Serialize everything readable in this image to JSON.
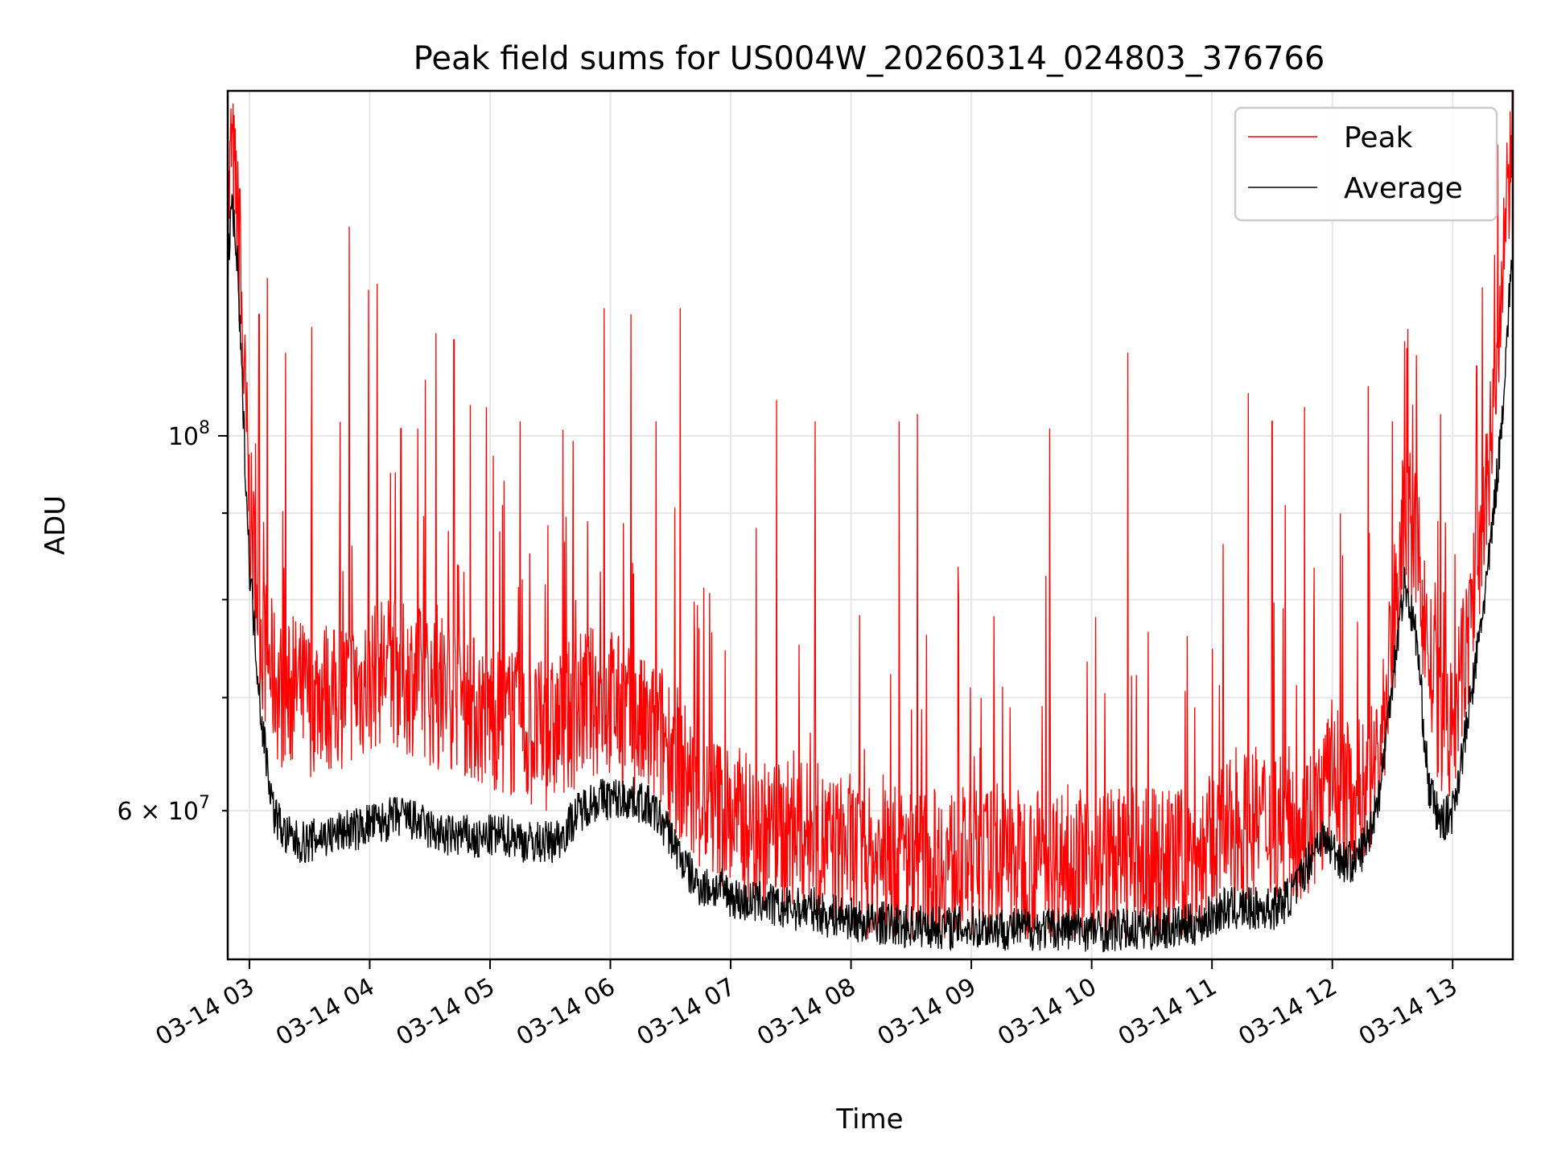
{
  "chart_data": {
    "type": "line",
    "title": "Peak field sums for US004W_20260314_024803_376766",
    "xlabel": "Time",
    "ylabel": "ADU",
    "yscale": "log",
    "ylim": [
      49000000,
      160000000
    ],
    "xlim": [
      2.82,
      13.5
    ],
    "grid": true,
    "legend_position": "top-right",
    "x_ticks": [
      {
        "value": 3,
        "label": "03-14 03"
      },
      {
        "value": 4,
        "label": "03-14 04"
      },
      {
        "value": 5,
        "label": "03-14 05"
      },
      {
        "value": 6,
        "label": "03-14 06"
      },
      {
        "value": 7,
        "label": "03-14 07"
      },
      {
        "value": 8,
        "label": "03-14 08"
      },
      {
        "value": 9,
        "label": "03-14 09"
      },
      {
        "value": 10,
        "label": "03-14 10"
      },
      {
        "value": 11,
        "label": "03-14 11"
      },
      {
        "value": 12,
        "label": "03-14 12"
      },
      {
        "value": 13,
        "label": "03-14 13"
      }
    ],
    "y_ticks_major": [
      {
        "value": 100000000,
        "label": "10",
        "exp": "8"
      }
    ],
    "y_ticks_minor": [
      {
        "value": 60000000,
        "label": "6 × 10",
        "exp": "7"
      },
      {
        "value": 70000000,
        "label": "",
        "exp": ""
      },
      {
        "value": 80000000,
        "label": "",
        "exp": ""
      },
      {
        "value": 90000000,
        "label": "",
        "exp": ""
      }
    ],
    "series": [
      {
        "name": "Peak",
        "color": "#ff0000",
        "x": [
          2.82,
          2.85,
          2.9,
          3.0,
          3.1,
          3.2,
          3.3,
          3.4,
          3.5,
          3.6,
          3.7,
          3.8,
          3.9,
          4.0,
          4.1,
          4.2,
          4.3,
          4.4,
          4.5,
          4.6,
          4.7,
          4.8,
          4.9,
          5.0,
          5.1,
          5.2,
          5.3,
          5.4,
          5.5,
          5.6,
          5.7,
          5.8,
          5.9,
          6.0,
          6.1,
          6.2,
          6.3,
          6.4,
          6.5,
          6.6,
          6.7,
          6.8,
          6.9,
          7.0,
          7.1,
          7.2,
          7.3,
          7.4,
          7.5,
          7.6,
          7.7,
          7.8,
          7.9,
          8.0,
          8.1,
          8.2,
          8.3,
          8.4,
          8.5,
          8.6,
          8.7,
          8.8,
          8.9,
          9.0,
          9.1,
          9.2,
          9.3,
          9.4,
          9.5,
          9.6,
          9.7,
          9.8,
          9.9,
          10.0,
          10.1,
          10.2,
          10.3,
          10.4,
          10.5,
          10.6,
          10.7,
          10.8,
          10.9,
          11.0,
          11.1,
          11.2,
          11.3,
          11.4,
          11.5,
          11.6,
          11.7,
          11.8,
          11.9,
          12.0,
          12.1,
          12.2,
          12.3,
          12.4,
          12.5,
          12.6,
          12.7,
          12.8,
          12.9,
          13.0,
          13.1,
          13.2,
          13.3,
          13.4,
          13.5
        ],
        "values": [
          125000000,
          140000000,
          128000000,
          86000000,
          72000000,
          68000000,
          66000000,
          67000000,
          66000000,
          67000000,
          66000000,
          67000000,
          67000000,
          68000000,
          69000000,
          69000000,
          68000000,
          68000000,
          67000000,
          66000000,
          67000000,
          66000000,
          65000000,
          65000000,
          64000000,
          64000000,
          63000000,
          63000000,
          63000000,
          64000000,
          65000000,
          66000000,
          66000000,
          66000000,
          65000000,
          64000000,
          63000000,
          63000000,
          62000000,
          60000000,
          58000000,
          57000000,
          57000000,
          56000000,
          56000000,
          55000000,
          55000000,
          55000000,
          55000000,
          55000000,
          55000000,
          54000000,
          54000000,
          54000000,
          53000000,
          53000000,
          53000000,
          53000000,
          53000000,
          53000000,
          53000000,
          53000000,
          53000000,
          53000000,
          53000000,
          53000000,
          53000000,
          53000000,
          53000000,
          53000000,
          53000000,
          53000000,
          53000000,
          53000000,
          53000000,
          53000000,
          53000000,
          53000000,
          53000000,
          53000000,
          53000000,
          53000000,
          53000000,
          54000000,
          55000000,
          55000000,
          56000000,
          56000000,
          56000000,
          56000000,
          56000000,
          56000000,
          57000000,
          60000000,
          58000000,
          58000000,
          59000000,
          62000000,
          72000000,
          85000000,
          82000000,
          70000000,
          64000000,
          63000000,
          70000000,
          78000000,
          90000000,
          110000000,
          150000000
        ],
        "spikes": [
          [
            2.92,
            140000000
          ],
          [
            3.08,
            118000000
          ],
          [
            3.15,
            124000000
          ],
          [
            3.3,
            112000000
          ],
          [
            3.52,
            116000000
          ],
          [
            3.83,
            133000000
          ],
          [
            3.99,
            122000000
          ],
          [
            4.06,
            123000000
          ],
          [
            4.26,
            101000000
          ],
          [
            4.4,
            101000000
          ],
          [
            4.55,
            115000000
          ],
          [
            4.7,
            114000000
          ],
          [
            4.97,
            104000000
          ],
          [
            5.25,
            102000000
          ],
          [
            5.95,
            119000000
          ],
          [
            6.17,
            118000000
          ],
          [
            6.38,
            102000000
          ],
          [
            6.58,
            119000000
          ],
          [
            7.38,
            105000000
          ],
          [
            7.7,
            102000000
          ],
          [
            8.4,
            102000000
          ],
          [
            8.55,
            103000000
          ],
          [
            9.65,
            101000000
          ],
          [
            10.3,
            112000000
          ],
          [
            11.3,
            106000000
          ],
          [
            11.5,
            102000000
          ],
          [
            11.77,
            104000000
          ],
          [
            12.3,
            107000000
          ],
          [
            12.5,
            102000000
          ],
          [
            12.9,
            103000000
          ],
          [
            13.2,
            110000000
          ],
          [
            13.35,
            128000000
          ],
          [
            13.46,
            142000000
          ]
        ]
      },
      {
        "name": "Average",
        "color": "#000000",
        "x": [
          2.82,
          2.85,
          2.9,
          3.0,
          3.1,
          3.2,
          3.3,
          3.4,
          3.5,
          3.6,
          3.7,
          3.8,
          3.9,
          4.0,
          4.1,
          4.2,
          4.3,
          4.4,
          4.5,
          4.6,
          4.7,
          4.8,
          4.9,
          5.0,
          5.1,
          5.2,
          5.3,
          5.4,
          5.5,
          5.6,
          5.7,
          5.8,
          5.9,
          6.0,
          6.1,
          6.2,
          6.3,
          6.4,
          6.5,
          6.6,
          6.7,
          6.8,
          6.9,
          7.0,
          7.1,
          7.2,
          7.3,
          7.4,
          7.5,
          7.6,
          7.7,
          7.8,
          7.9,
          8.0,
          8.1,
          8.2,
          8.3,
          8.4,
          8.5,
          8.6,
          8.7,
          8.8,
          8.9,
          9.0,
          9.1,
          9.2,
          9.3,
          9.4,
          9.5,
          9.6,
          9.7,
          9.8,
          9.9,
          10.0,
          10.1,
          10.2,
          10.3,
          10.4,
          10.5,
          10.6,
          10.7,
          10.8,
          10.9,
          11.0,
          11.1,
          11.2,
          11.3,
          11.4,
          11.5,
          11.6,
          11.7,
          11.8,
          11.9,
          12.0,
          12.1,
          12.2,
          12.3,
          12.4,
          12.5,
          12.6,
          12.7,
          12.8,
          12.9,
          13.0,
          13.1,
          13.2,
          13.3,
          13.4,
          13.5
        ],
        "values": [
          124000000,
          138000000,
          126000000,
          84000000,
          68000000,
          60000000,
          58000000,
          57500000,
          57500000,
          58000000,
          58000000,
          58500000,
          58500000,
          59000000,
          59000000,
          59500000,
          59500000,
          59000000,
          58500000,
          58000000,
          58000000,
          58000000,
          57500000,
          58000000,
          58000000,
          58000000,
          57500000,
          57500000,
          57500000,
          58000000,
          59500000,
          60500000,
          61000000,
          61000000,
          61000000,
          61000000,
          60500000,
          59500000,
          58000000,
          56000000,
          54500000,
          54000000,
          54000000,
          53500000,
          53000000,
          53000000,
          53000000,
          52500000,
          52500000,
          52500000,
          52500000,
          52000000,
          52000000,
          51800000,
          51500000,
          51500000,
          51500000,
          51300000,
          51300000,
          51300000,
          51200000,
          51200000,
          51200000,
          51200000,
          51200000,
          51200000,
          51100000,
          51100000,
          51100000,
          51100000,
          51100000,
          51100000,
          51100000,
          51000000,
          51000000,
          51000000,
          51000000,
          51100000,
          51100000,
          51200000,
          51200000,
          51300000,
          51500000,
          52000000,
          52500000,
          52500000,
          52500000,
          52500000,
          52500000,
          53000000,
          54000000,
          56000000,
          58000000,
          57000000,
          56000000,
          56000000,
          58000000,
          62000000,
          72000000,
          82000000,
          76000000,
          62000000,
          59000000,
          60000000,
          66000000,
          74000000,
          84000000,
          100000000,
          130000000
        ]
      }
    ]
  }
}
